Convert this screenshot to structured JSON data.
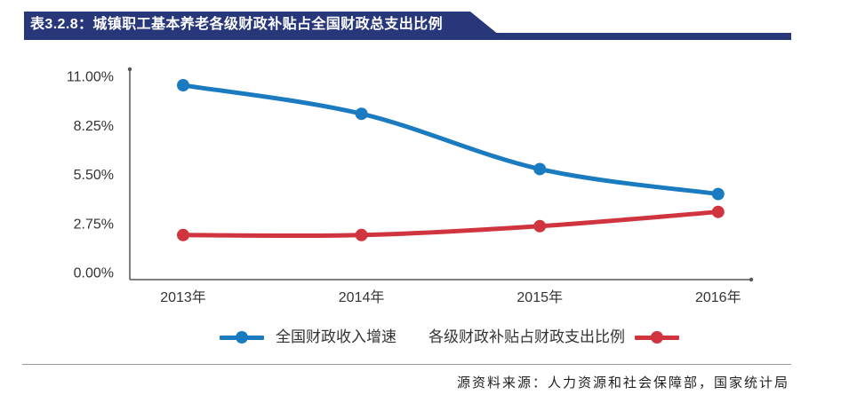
{
  "chart_data": {
    "type": "line",
    "title": "表3.2.8：城镇职工基本养老各级财政补贴占全国财政总支出比例",
    "xlabel": "",
    "ylabel": "",
    "categories": [
      "2013年",
      "2014年",
      "2015年",
      "2016年"
    ],
    "ylim": [
      0,
      11
    ],
    "yticks": [
      0,
      2.75,
      5.5,
      8.25,
      11
    ],
    "ytick_labels": [
      "0.00%",
      "2.75%",
      "5.50%",
      "8.25%",
      "11.00%"
    ],
    "grid": false,
    "legend_position": "bottom",
    "series": [
      {
        "name": "全国财政收入增速",
        "values": [
          10.5,
          8.9,
          5.8,
          4.4
        ],
        "color": "#1b7bc1"
      },
      {
        "name": "各级财政补贴占财政支出比例",
        "values": [
          2.1,
          2.1,
          2.6,
          3.4
        ],
        "color": "#d0353f"
      }
    ]
  },
  "header": {
    "color": "#27377a"
  },
  "footer": {
    "source": "源资料来源：人力资源和社会保障部，国家统计局"
  }
}
